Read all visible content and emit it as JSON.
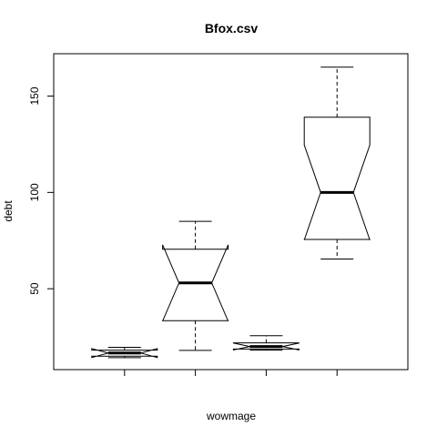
{
  "chart_data": {
    "type": "boxplot",
    "title": "Bfox.csv",
    "xlabel": "wowmage",
    "ylabel": "debt",
    "notched": true,
    "ylim": [
      8,
      172
    ],
    "yticks": [
      50,
      100,
      150
    ],
    "categories": [
      "",
      "",
      "",
      ""
    ],
    "boxes": [
      {
        "min": 14.2,
        "q1": 15.0,
        "median": 16.6,
        "q3": 18.1,
        "max": 19.6,
        "notch_low": 14.3,
        "notch_high": 18.9
      },
      {
        "min": 18.0,
        "q1": 33.4,
        "median": 53.0,
        "q3": 70.5,
        "max": 85.0,
        "notch_low": 33.2,
        "notch_high": 72.8
      },
      {
        "min": 18.1,
        "q1": 18.7,
        "median": 20.0,
        "q3": 21.9,
        "max": 25.6,
        "notch_low": 18.2,
        "notch_high": 21.8
      },
      {
        "min": 65.4,
        "q1": 75.6,
        "median": 100.0,
        "q3": 139.0,
        "max": 165.0,
        "notch_low": 75.3,
        "notch_high": 124.6
      }
    ]
  }
}
